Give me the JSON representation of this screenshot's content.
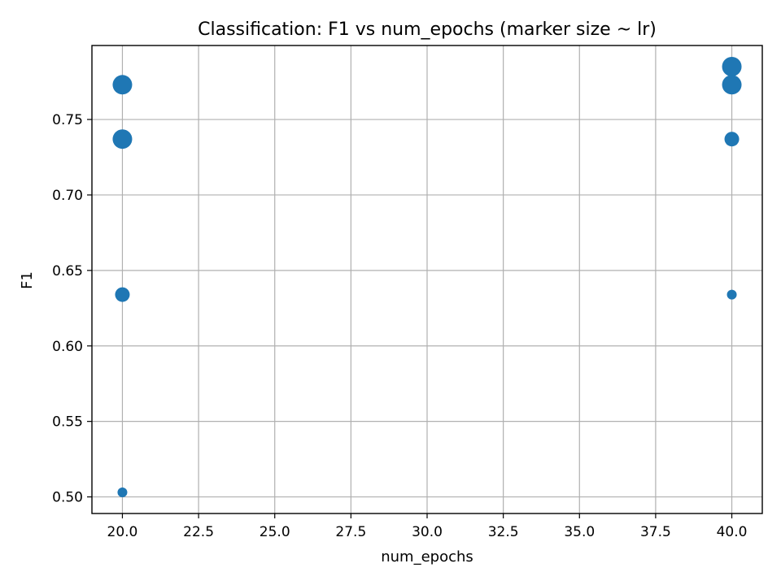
{
  "chart_data": {
    "type": "scatter",
    "title": "Classification: F1 vs num_epochs (marker size ~ lr)",
    "xlabel": "num_epochs",
    "ylabel": "F1",
    "xlim": [
      19.0,
      41.0
    ],
    "ylim": [
      0.489,
      0.799
    ],
    "xticks": [
      20.0,
      22.5,
      25.0,
      27.5,
      30.0,
      32.5,
      35.0,
      37.5,
      40.0
    ],
    "xtick_labels": [
      "20.0",
      "22.5",
      "25.0",
      "27.5",
      "30.0",
      "32.5",
      "35.0",
      "37.5",
      "40.0"
    ],
    "yticks": [
      0.5,
      0.55,
      0.6,
      0.65,
      0.7,
      0.75
    ],
    "ytick_labels": [
      "0.50",
      "0.55",
      "0.60",
      "0.65",
      "0.70",
      "0.75"
    ],
    "grid": true,
    "marker_color": "#1f77b4",
    "size_encodes": "lr",
    "points": [
      {
        "x": 20,
        "y": 0.773,
        "size": 3
      },
      {
        "x": 20,
        "y": 0.737,
        "size": 3
      },
      {
        "x": 20,
        "y": 0.634,
        "size": 2
      },
      {
        "x": 20,
        "y": 0.503,
        "size": 1
      },
      {
        "x": 40,
        "y": 0.785,
        "size": 3
      },
      {
        "x": 40,
        "y": 0.773,
        "size": 3
      },
      {
        "x": 40,
        "y": 0.737,
        "size": 2
      },
      {
        "x": 40,
        "y": 0.634,
        "size": 1
      }
    ]
  }
}
